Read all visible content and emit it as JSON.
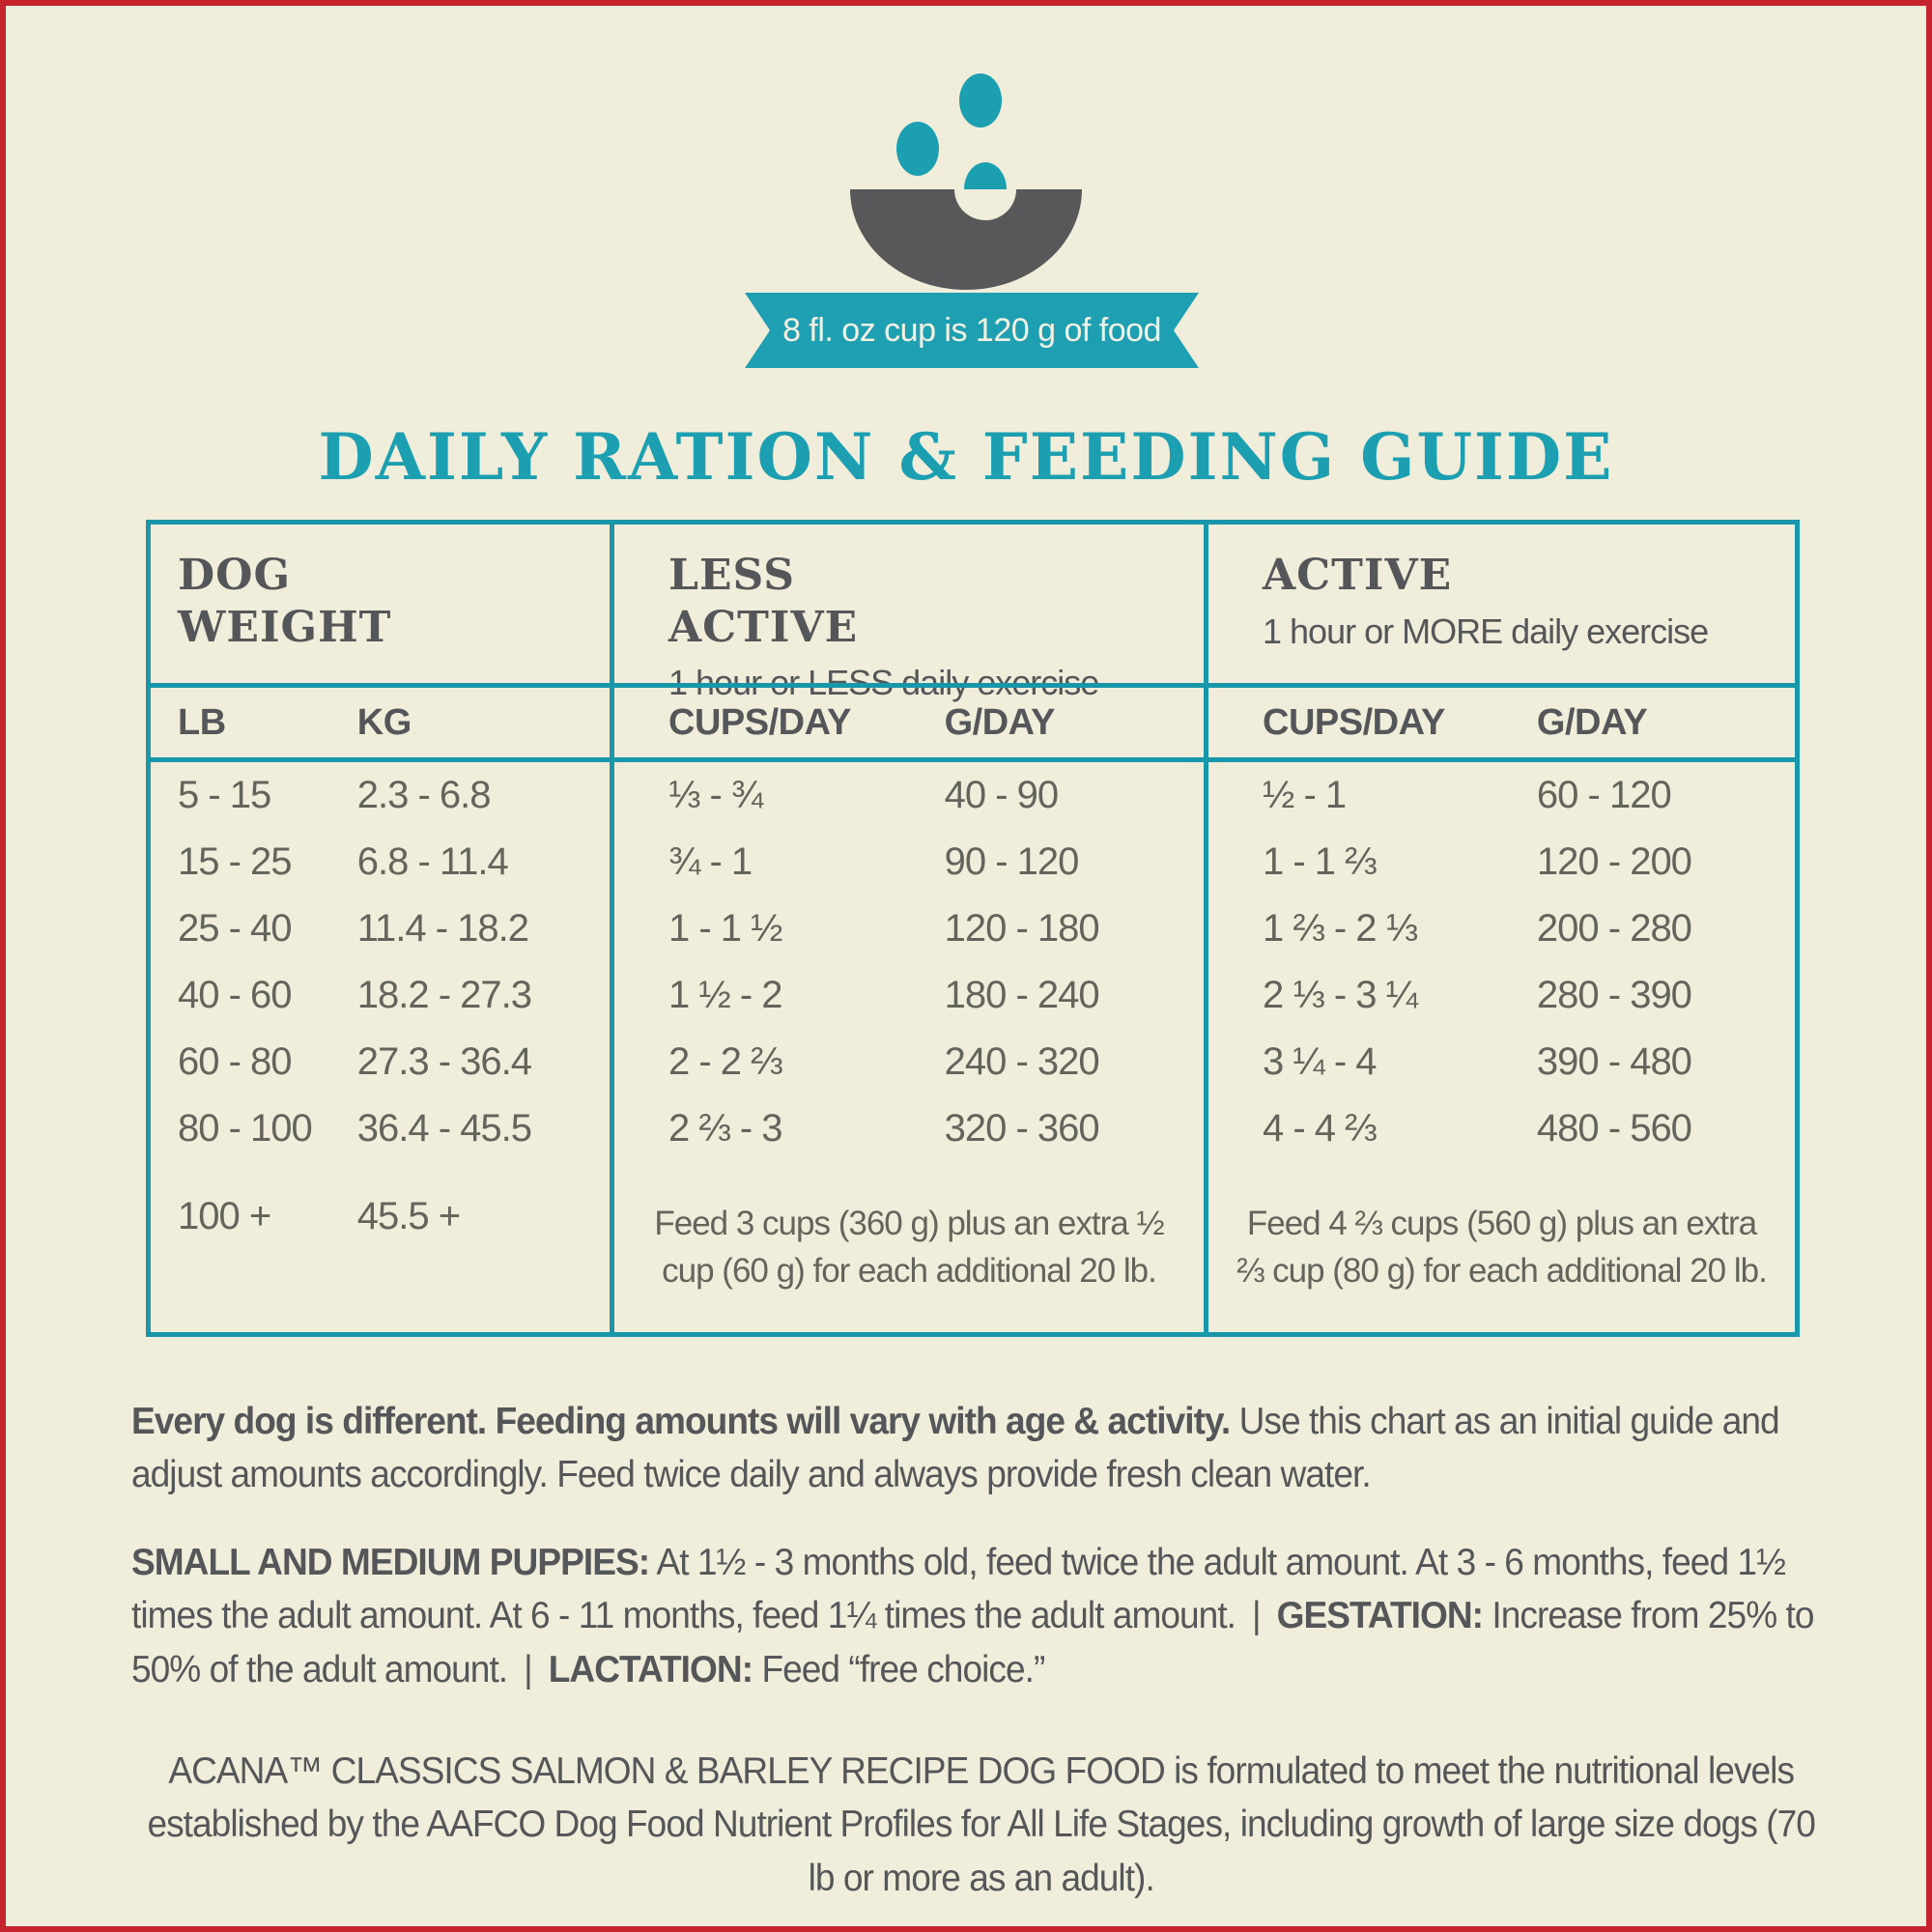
{
  "colors": {
    "teal": "#1C9FB1",
    "cream_background": "#F0EEDB",
    "red_border": "#C5242E",
    "dark_gray": "#58585B"
  },
  "ribbon": {
    "text": "8 fl. oz cup is 120 g of food"
  },
  "title": "DAILY RATION & FEEDING GUIDE",
  "table": {
    "col1": {
      "header": "DOG WEIGHT"
    },
    "col2": {
      "header": "LESS ACTIVE",
      "sub": "1 hour or LESS daily exercise"
    },
    "col3": {
      "header": "ACTIVE",
      "sub": "1 hour or MORE daily exercise"
    },
    "subheaders": {
      "lb": "LB",
      "kg": "KG",
      "cups": "CUPS/DAY",
      "g": "G/DAY"
    },
    "rows": [
      {
        "lb": "5 - 15",
        "kg": "2.3 - 6.8",
        "la_cups": "⅓ - ¾",
        "la_g": "40 - 90",
        "a_cups": "½ - 1",
        "a_g": "60 - 120"
      },
      {
        "lb": "15 - 25",
        "kg": "6.8 - 11.4",
        "la_cups": "¾ - 1",
        "la_g": "90 - 120",
        "a_cups": "1 - 1 ⅔",
        "a_g": "120 - 200"
      },
      {
        "lb": "25 - 40",
        "kg": "11.4 - 18.2",
        "la_cups": "1 - 1 ½",
        "la_g": "120 - 180",
        "a_cups": "1 ⅔ - 2 ⅓",
        "a_g": "200 - 280"
      },
      {
        "lb": "40 - 60",
        "kg": "18.2 - 27.3",
        "la_cups": "1 ½ - 2",
        "la_g": "180 - 240",
        "a_cups": "2 ⅓ - 3 ¼",
        "a_g": "280 - 390"
      },
      {
        "lb": "60 - 80",
        "kg": "27.3 - 36.4",
        "la_cups": "2 - 2 ⅔",
        "la_g": "240 - 320",
        "a_cups": "3 ¼ - 4",
        "a_g": "390 - 480"
      },
      {
        "lb": "80 - 100",
        "kg": "36.4 - 45.5",
        "la_cups": "2 ⅔ - 3",
        "la_g": "320 - 360",
        "a_cups": "4 - 4 ⅔",
        "a_g": "480 - 560"
      }
    ],
    "last_row": {
      "lb": "100 +",
      "kg": "45.5 +"
    },
    "less_active_note": "Feed 3 cups (360 g) plus an extra ½ cup (60 g) for each additional 20 lb.",
    "active_note": "Feed 4 ⅔ cups (560 g) plus an extra ⅔ cup (80 g) for each additional 20 lb."
  },
  "notes": {
    "para1_bold": "Every dog is different. Feeding amounts will vary with age & activity.",
    "para1_rest": " Use this chart as an initial guide and adjust amounts accordingly. Feed twice daily and always provide fresh clean water.",
    "para2_bold1": "SMALL AND MEDIUM PUPPIES:",
    "para2_rest1": " At 1½ - 3 months old, feed twice the adult amount. At 3 - 6 months, feed 1½ times the adult amount. At 6 - 11 months, feed 1¼ times the adult amount. ",
    "para2_sep1": "|",
    "para2_bold2": " GESTATION: ",
    "para2_rest2": "Increase from 25% to 50% of the adult amount. ",
    "para2_sep2": "|",
    "para2_bold3": " LACTATION: ",
    "para2_rest3": "Feed “free choice.”",
    "para3": "ACANA™ CLASSICS SALMON & BARLEY RECIPE DOG FOOD is formulated to meet the nutritional levels established by the AAFCO Dog Food Nutrient Profiles for All Life Stages, including growth of large size dogs (70 lb or more as an adult)."
  }
}
